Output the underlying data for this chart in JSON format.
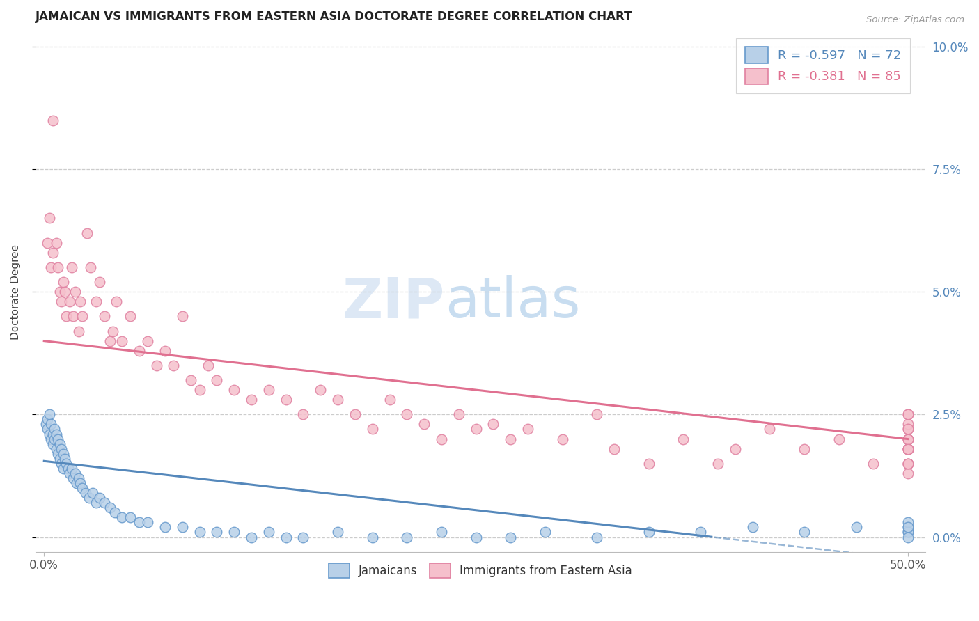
{
  "title": "JAMAICAN VS IMMIGRANTS FROM EASTERN ASIA DOCTORATE DEGREE CORRELATION CHART",
  "source": "Source: ZipAtlas.com",
  "ylabel": "Doctorate Degree",
  "xlim": [
    0.0,
    50.0
  ],
  "ylim": [
    0.0,
    10.0
  ],
  "jamaicans_R": -0.597,
  "jamaicans_N": 72,
  "eastern_asia_R": -0.381,
  "eastern_asia_N": 85,
  "blue_fill": "#b8d0e8",
  "blue_edge": "#6699cc",
  "pink_fill": "#f5c0cc",
  "pink_edge": "#e080a0",
  "blue_line": "#5588bb",
  "pink_line": "#e07090",
  "background_color": "#ffffff",
  "grid_color": "#cccccc",
  "right_tick_color": "#5588bb",
  "title_color": "#222222",
  "watermark_color": "#dde8f5",
  "jamaicans_x": [
    0.1,
    0.2,
    0.2,
    0.3,
    0.3,
    0.4,
    0.4,
    0.5,
    0.5,
    0.6,
    0.6,
    0.7,
    0.7,
    0.8,
    0.8,
    0.9,
    0.9,
    1.0,
    1.0,
    1.1,
    1.1,
    1.2,
    1.3,
    1.4,
    1.5,
    1.6,
    1.7,
    1.8,
    1.9,
    2.0,
    2.1,
    2.2,
    2.4,
    2.6,
    2.8,
    3.0,
    3.2,
    3.5,
    3.8,
    4.1,
    4.5,
    5.0,
    5.5,
    6.0,
    7.0,
    8.0,
    9.0,
    10.0,
    11.0,
    12.0,
    13.0,
    14.0,
    15.0,
    17.0,
    19.0,
    21.0,
    23.0,
    25.0,
    27.0,
    29.0,
    32.0,
    35.0,
    38.0,
    41.0,
    44.0,
    47.0,
    50.0,
    50.0,
    50.0,
    50.0,
    50.0,
    50.0
  ],
  "jamaicans_y": [
    2.3,
    2.2,
    2.4,
    2.1,
    2.5,
    2.0,
    2.3,
    2.1,
    1.9,
    2.2,
    2.0,
    1.8,
    2.1,
    1.7,
    2.0,
    1.6,
    1.9,
    1.5,
    1.8,
    1.7,
    1.4,
    1.6,
    1.5,
    1.4,
    1.3,
    1.4,
    1.2,
    1.3,
    1.1,
    1.2,
    1.1,
    1.0,
    0.9,
    0.8,
    0.9,
    0.7,
    0.8,
    0.7,
    0.6,
    0.5,
    0.4,
    0.4,
    0.3,
    0.3,
    0.2,
    0.2,
    0.1,
    0.1,
    0.1,
    0.0,
    0.1,
    0.0,
    0.0,
    0.1,
    0.0,
    0.0,
    0.1,
    0.0,
    0.0,
    0.1,
    0.0,
    0.1,
    0.1,
    0.2,
    0.1,
    0.2,
    0.1,
    0.2,
    0.3,
    0.1,
    0.2,
    0.0
  ],
  "eastern_asia_x": [
    0.2,
    0.3,
    0.4,
    0.5,
    0.5,
    0.7,
    0.8,
    0.9,
    1.0,
    1.1,
    1.2,
    1.3,
    1.5,
    1.6,
    1.7,
    1.8,
    2.0,
    2.1,
    2.2,
    2.5,
    2.7,
    3.0,
    3.2,
    3.5,
    3.8,
    4.0,
    4.2,
    4.5,
    5.0,
    5.5,
    6.0,
    6.5,
    7.0,
    7.5,
    8.0,
    8.5,
    9.0,
    9.5,
    10.0,
    11.0,
    12.0,
    13.0,
    14.0,
    15.0,
    16.0,
    17.0,
    18.0,
    19.0,
    20.0,
    21.0,
    22.0,
    23.0,
    24.0,
    25.0,
    26.0,
    27.0,
    28.0,
    30.0,
    32.0,
    33.0,
    35.0,
    37.0,
    39.0,
    40.0,
    42.0,
    44.0,
    46.0,
    48.0,
    50.0,
    50.0,
    50.0,
    50.0,
    50.0,
    50.0,
    50.0,
    50.0,
    50.0,
    50.0,
    50.0,
    50.0,
    50.0,
    50.0,
    50.0,
    50.0,
    50.0
  ],
  "eastern_asia_y": [
    6.0,
    6.5,
    5.5,
    5.8,
    8.5,
    6.0,
    5.5,
    5.0,
    4.8,
    5.2,
    5.0,
    4.5,
    4.8,
    5.5,
    4.5,
    5.0,
    4.2,
    4.8,
    4.5,
    6.2,
    5.5,
    4.8,
    5.2,
    4.5,
    4.0,
    4.2,
    4.8,
    4.0,
    4.5,
    3.8,
    4.0,
    3.5,
    3.8,
    3.5,
    4.5,
    3.2,
    3.0,
    3.5,
    3.2,
    3.0,
    2.8,
    3.0,
    2.8,
    2.5,
    3.0,
    2.8,
    2.5,
    2.2,
    2.8,
    2.5,
    2.3,
    2.0,
    2.5,
    2.2,
    2.3,
    2.0,
    2.2,
    2.0,
    2.5,
    1.8,
    1.5,
    2.0,
    1.5,
    1.8,
    2.2,
    1.8,
    2.0,
    1.5,
    1.8,
    2.5,
    2.0,
    1.5,
    1.8,
    2.2,
    1.3,
    1.5,
    1.8,
    2.0,
    2.3,
    1.5,
    1.8,
    2.0,
    2.5,
    1.8,
    2.2
  ]
}
